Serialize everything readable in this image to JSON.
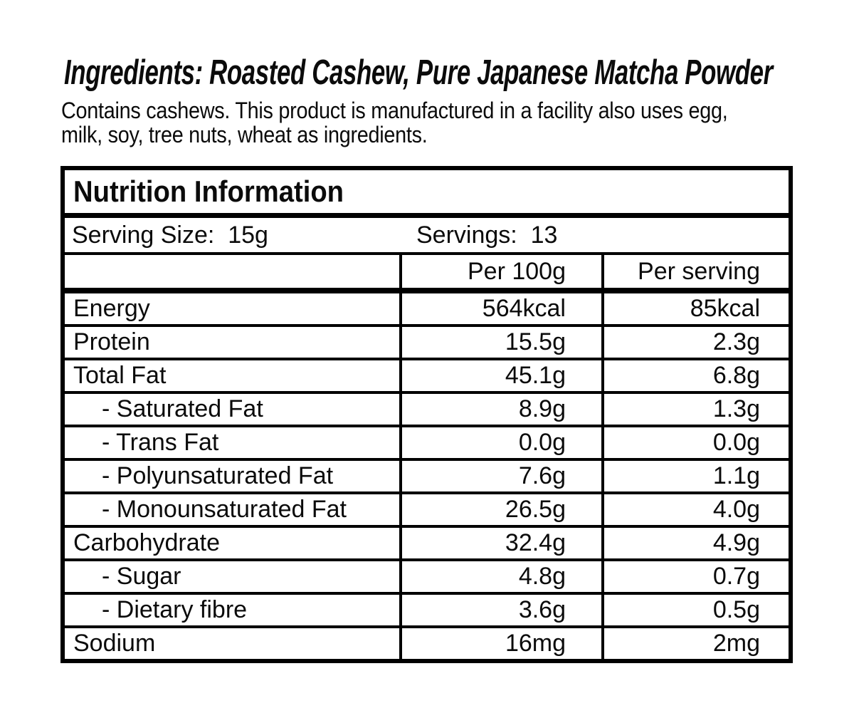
{
  "ingredients": {
    "title": "Ingredients: Roasted Cashew, Pure Japanese Matcha Powder",
    "allergen_line1": "Contains cashews. This product is manufactured in a facility also uses egg,",
    "allergen_line2": "milk, soy, tree nuts, wheat as ingredients."
  },
  "nutrition": {
    "title": "Nutrition Information",
    "serving_size_label": "Serving Size:  15g",
    "servings_label": "Servings:  13",
    "col_per100g": "Per 100g",
    "col_per_serving": "Per serving",
    "rows": [
      {
        "label": "Energy",
        "per100g": "564kcal",
        "per_serving": "85kcal"
      },
      {
        "label": "Protein",
        "per100g": "15.5g",
        "per_serving": "2.3g"
      },
      {
        "label": "Total Fat",
        "per100g": "45.1g",
        "per_serving": "6.8g"
      },
      {
        "label": "- Saturated Fat",
        "per100g": "8.9g",
        "per_serving": "1.3g"
      },
      {
        "label": "- Trans Fat",
        "per100g": "0.0g",
        "per_serving": "0.0g"
      },
      {
        "label": "- Polyunsaturated Fat",
        "per100g": "7.6g",
        "per_serving": "1.1g"
      },
      {
        "label": "- Monounsaturated Fat",
        "per100g": "26.5g",
        "per_serving": "4.0g"
      },
      {
        "label": "Carbohydrate",
        "per100g": "32.4g",
        "per_serving": "4.9g"
      },
      {
        "label": "- Sugar",
        "per100g": "4.8g",
        "per_serving": "0.7g"
      },
      {
        "label": "- Dietary fibre",
        "per100g": "3.6g",
        "per_serving": "0.5g"
      },
      {
        "label": "Sodium",
        "per100g": "16mg",
        "per_serving": "2mg"
      }
    ]
  },
  "colors": {
    "text": "#0b0b0b",
    "border": "#000000",
    "background": "#ffffff"
  }
}
